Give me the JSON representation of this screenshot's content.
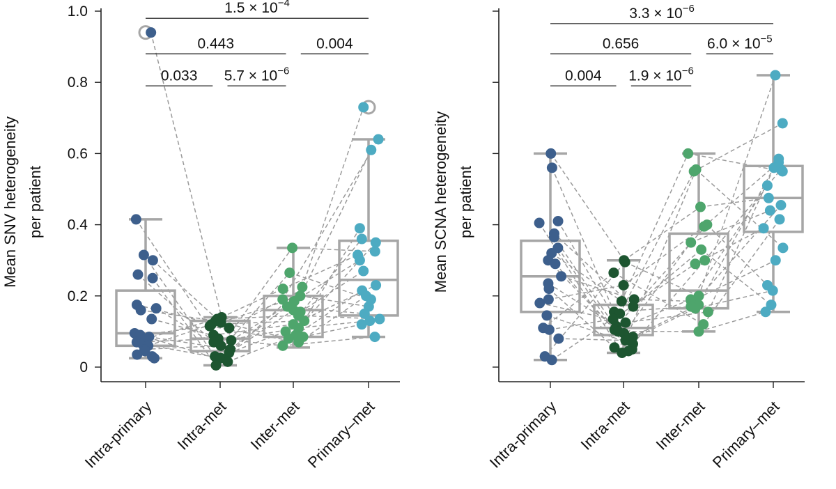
{
  "chart_data": [
    {
      "type": "box-strip",
      "ylabel_line1": "Mean SNV heterogeneity",
      "ylabel_line2": "per patient",
      "ylim": [
        0,
        1.0
      ],
      "yticks": [
        0,
        0.2,
        0.4,
        0.6,
        0.8,
        1.0
      ],
      "ytick_labels": [
        "0",
        "0.2",
        "0.4",
        "0.6",
        "0.8",
        "1.0"
      ],
      "categories": [
        "Intra-primary",
        "Intra-met",
        "Inter-met",
        "Primary–met"
      ],
      "colors": [
        "#3d5f8c",
        "#1d5530",
        "#4ea56c",
        "#4dabc2"
      ],
      "boxes": [
        {
          "whisker_low": 0.025,
          "q1": 0.06,
          "median": 0.095,
          "q3": 0.215,
          "whisker_high": 0.415
        },
        {
          "whisker_low": 0.005,
          "q1": 0.045,
          "median": 0.08,
          "q3": 0.13,
          "whisker_high": 0.14
        },
        {
          "whisker_low": 0.055,
          "q1": 0.085,
          "median": 0.16,
          "q3": 0.2,
          "whisker_high": 0.335
        },
        {
          "whisker_low": 0.085,
          "q1": 0.145,
          "median": 0.245,
          "q3": 0.355,
          "whisker_high": 0.64
        }
      ],
      "outliers": [
        {
          "category": 0,
          "value": 0.94
        },
        {
          "category": 3,
          "value": 0.73
        }
      ],
      "points": [
        [
          0.94,
          0.415,
          0.315,
          0.3,
          0.26,
          0.25,
          0.175,
          0.165,
          0.16,
          0.135,
          0.095,
          0.09,
          0.085,
          0.08,
          0.07,
          0.065,
          0.06,
          0.05,
          0.045,
          0.035,
          0.03,
          0.025
        ],
        [
          0.14,
          0.135,
          0.13,
          0.125,
          0.12,
          0.115,
          0.11,
          0.09,
          0.08,
          0.075,
          0.07,
          0.06,
          0.05,
          0.04,
          0.03,
          0.025,
          0.015,
          0.005
        ],
        [
          0.335,
          0.265,
          0.225,
          0.22,
          0.2,
          0.19,
          0.185,
          0.17,
          0.16,
          0.155,
          0.145,
          0.13,
          0.12,
          0.11,
          0.1,
          0.09,
          0.085,
          0.08,
          0.07,
          0.06
        ],
        [
          0.73,
          0.64,
          0.61,
          0.39,
          0.36,
          0.35,
          0.325,
          0.315,
          0.3,
          0.27,
          0.23,
          0.215,
          0.2,
          0.19,
          0.17,
          0.15,
          0.135,
          0.13,
          0.12,
          0.085
        ]
      ],
      "pvalues": [
        {
          "from": 0,
          "to": 3,
          "mantissa": "1.5 × 10",
          "exponent": "−4",
          "y": 0.98
        },
        {
          "from": 0,
          "to": 1.9,
          "mantissa": "0.443",
          "exponent": "",
          "y": 0.88
        },
        {
          "from": 2.1,
          "to": 3,
          "mantissa": "0.004",
          "exponent": "",
          "y": 0.88
        },
        {
          "from": 0,
          "to": 0.9,
          "mantissa": "0.033",
          "exponent": "",
          "y": 0.79
        },
        {
          "from": 1.1,
          "to": 1.9,
          "mantissa": "5.7 × 10",
          "exponent": "−6",
          "y": 0.79
        }
      ]
    },
    {
      "type": "box-strip",
      "ylabel_line1": "Mean SCNA heterogeneity",
      "ylabel_line2": "per patient",
      "ylim": [
        0,
        1.0
      ],
      "yticks": [
        0,
        0.2,
        0.4,
        0.6,
        0.8,
        1.0
      ],
      "ytick_labels": [
        "",
        "",
        "",
        "",
        "",
        ""
      ],
      "categories": [
        "Intra-primary",
        "Intra-met",
        "Inter-met",
        "Primary–met"
      ],
      "colors": [
        "#3d5f8c",
        "#1d5530",
        "#4ea56c",
        "#4dabc2"
      ],
      "boxes": [
        {
          "whisker_low": 0.02,
          "q1": 0.155,
          "median": 0.255,
          "q3": 0.355,
          "whisker_high": 0.6
        },
        {
          "whisker_low": 0.04,
          "q1": 0.09,
          "median": 0.11,
          "q3": 0.175,
          "whisker_high": 0.3
        },
        {
          "whisker_low": 0.1,
          "q1": 0.165,
          "median": 0.215,
          "q3": 0.375,
          "whisker_high": 0.6
        },
        {
          "whisker_low": 0.155,
          "q1": 0.38,
          "median": 0.475,
          "q3": 0.565,
          "whisker_high": 0.82
        }
      ],
      "outliers": [],
      "points": [
        [
          0.6,
          0.56,
          0.41,
          0.405,
          0.375,
          0.365,
          0.335,
          0.32,
          0.3,
          0.29,
          0.255,
          0.235,
          0.22,
          0.19,
          0.18,
          0.145,
          0.11,
          0.105,
          0.08,
          0.03,
          0.02
        ],
        [
          0.3,
          0.295,
          0.265,
          0.23,
          0.19,
          0.185,
          0.17,
          0.155,
          0.15,
          0.135,
          0.125,
          0.115,
          0.105,
          0.1,
          0.095,
          0.085,
          0.075,
          0.065,
          0.055,
          0.05,
          0.045,
          0.04
        ],
        [
          0.6,
          0.555,
          0.55,
          0.45,
          0.4,
          0.395,
          0.35,
          0.33,
          0.3,
          0.29,
          0.2,
          0.19,
          0.185,
          0.175,
          0.17,
          0.165,
          0.155,
          0.12,
          0.1
        ],
        [
          0.82,
          0.685,
          0.585,
          0.575,
          0.56,
          0.555,
          0.55,
          0.51,
          0.475,
          0.455,
          0.44,
          0.415,
          0.39,
          0.335,
          0.3,
          0.23,
          0.215,
          0.175,
          0.155
        ]
      ],
      "pvalues": [
        {
          "from": 0,
          "to": 3,
          "mantissa": "3.3 × 10",
          "exponent": "−6",
          "y": 0.965
        },
        {
          "from": 0,
          "to": 1.9,
          "mantissa": "0.656",
          "exponent": "",
          "y": 0.88
        },
        {
          "from": 2.1,
          "to": 3,
          "mantissa": "6.0 × 10",
          "exponent": "−5",
          "y": 0.88
        },
        {
          "from": 0,
          "to": 0.9,
          "mantissa": "0.004",
          "exponent": "",
          "y": 0.79
        },
        {
          "from": 1.1,
          "to": 1.9,
          "mantissa": "1.9 × 10",
          "exponent": "−6",
          "y": 0.79
        }
      ]
    }
  ]
}
